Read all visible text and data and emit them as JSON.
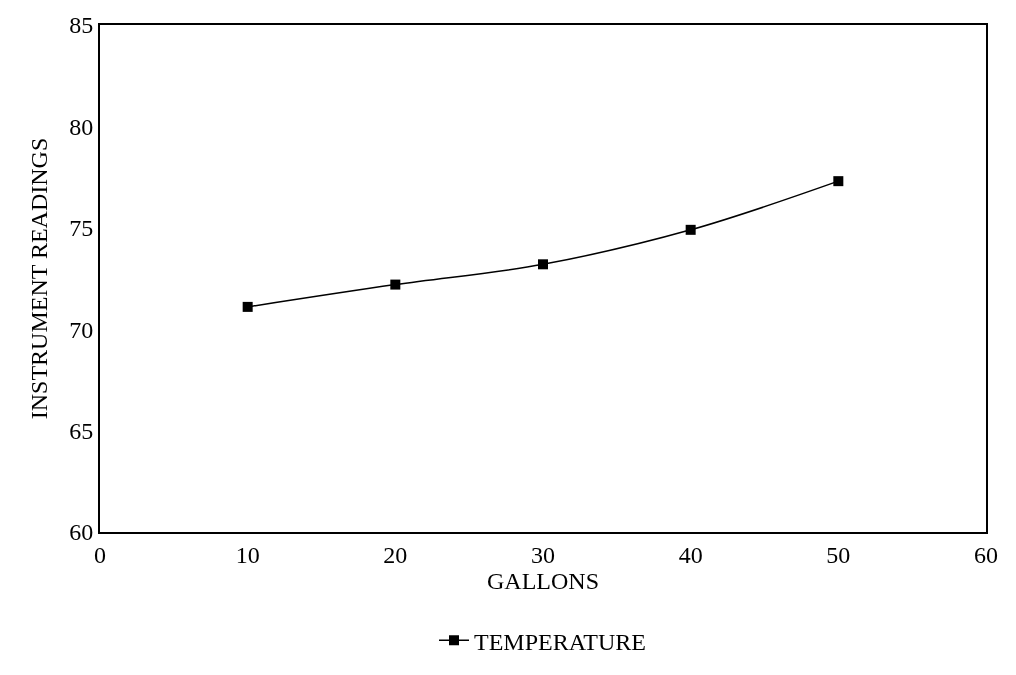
{
  "chart_data": {
    "type": "line",
    "xlabel": "GALLONS",
    "ylabel": "INSTRUMENT READINGS",
    "x": [
      10,
      20,
      30,
      40,
      50
    ],
    "series": [
      {
        "name": "TEMPERATURE",
        "color": "#000000",
        "values": [
          71.1,
          72.2,
          73.2,
          74.9,
          77.3
        ]
      }
    ],
    "xlim": [
      0,
      60
    ],
    "xticks": [
      0,
      10,
      20,
      30,
      40,
      50,
      60
    ],
    "ylim": [
      60,
      85
    ],
    "yticks": [
      60,
      65,
      70,
      75,
      80,
      85
    ],
    "legend": "bottom",
    "marker": "square",
    "line_style": "solid"
  }
}
